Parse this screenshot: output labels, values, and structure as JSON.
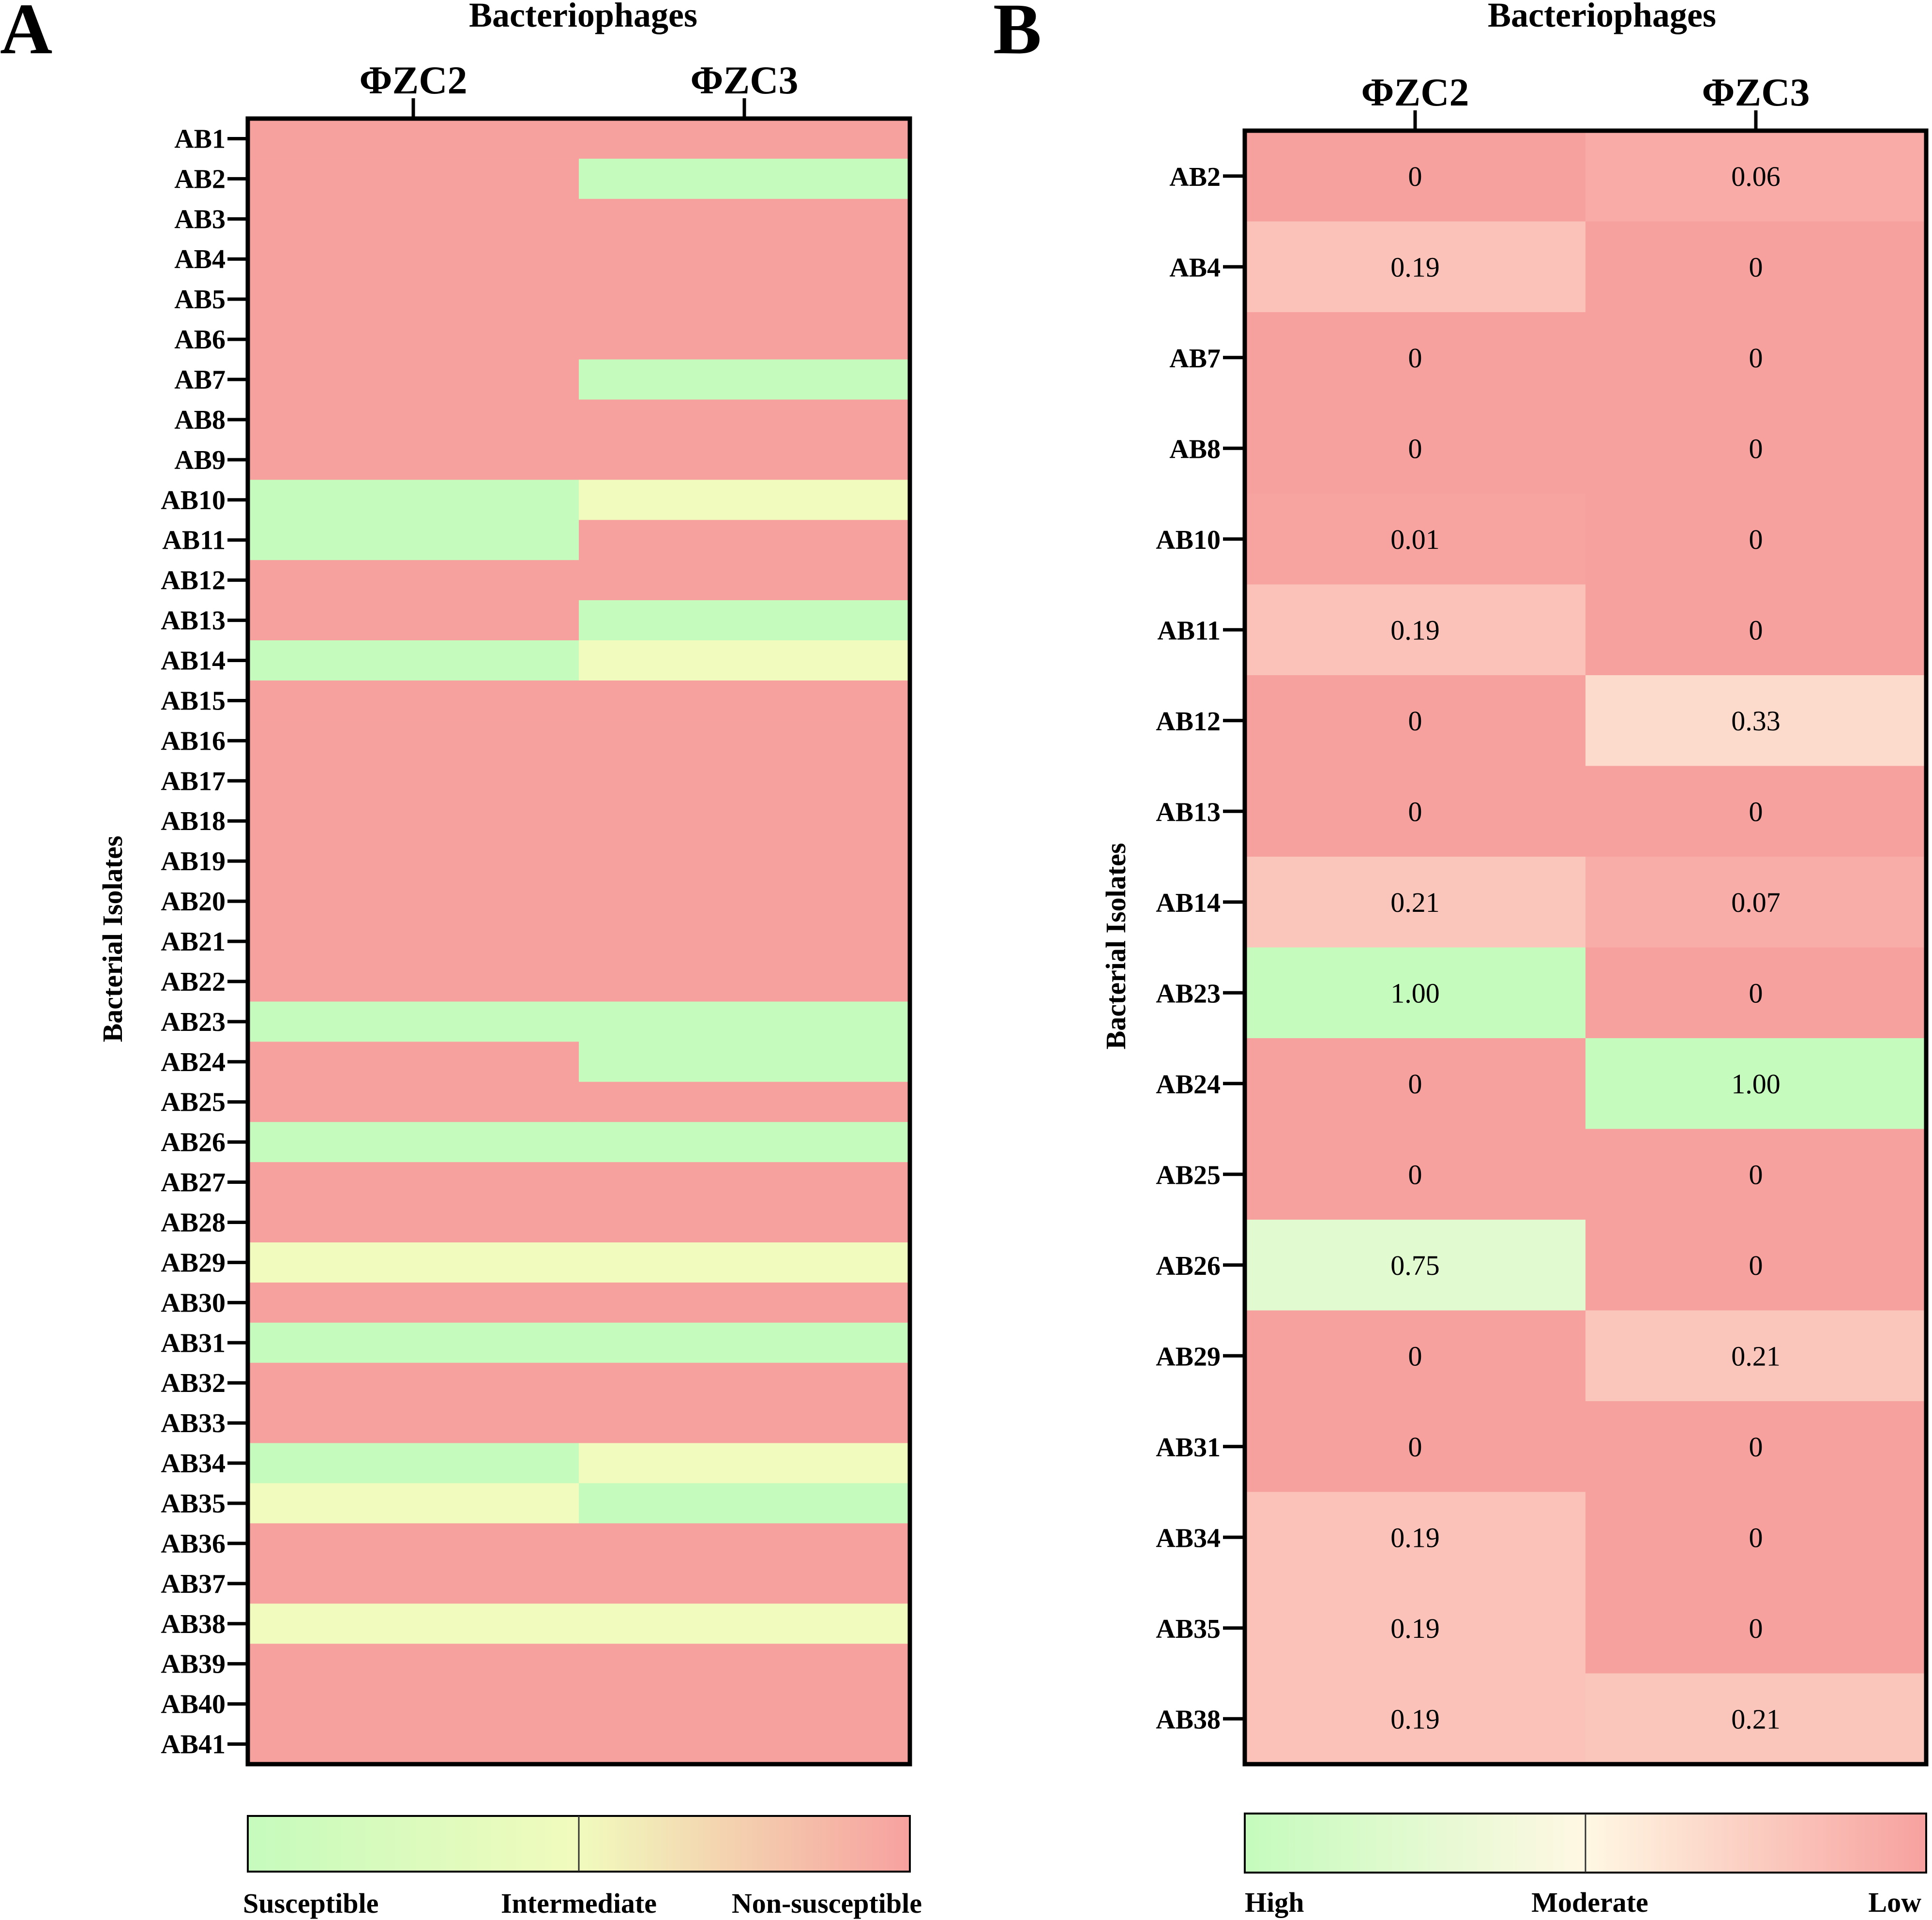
{
  "colors": {
    "non_susceptible": "#f7a19f",
    "susceptible": "#c5fbbd",
    "intermediate": "#f1fbbd",
    "high": "#c5fbbd",
    "moderate": "#fff8e3",
    "low": "#f7a19f"
  },
  "chart_data": [
    {
      "panel": "A",
      "type": "heatmap",
      "title": "Bacteriophages",
      "xlabel": "",
      "ylabel": "Bacterial Isolates",
      "columns": [
        "ΦZC2",
        "ΦZC3"
      ],
      "rows": [
        "AB1",
        "AB2",
        "AB3",
        "AB4",
        "AB5",
        "AB6",
        "AB7",
        "AB8",
        "AB9",
        "AB10",
        "AB11",
        "AB12",
        "AB13",
        "AB14",
        "AB15",
        "AB16",
        "AB17",
        "AB18",
        "AB19",
        "AB20",
        "AB21",
        "AB22",
        "AB23",
        "AB24",
        "AB25",
        "AB26",
        "AB27",
        "AB28",
        "AB29",
        "AB30",
        "AB31",
        "AB32",
        "AB33",
        "AB34",
        "AB35",
        "AB36",
        "AB37",
        "AB38",
        "AB39",
        "AB40",
        "AB41"
      ],
      "categories": [
        "Susceptible",
        "Intermediate",
        "Non-susceptible"
      ],
      "values": [
        [
          "N",
          "N"
        ],
        [
          "N",
          "S"
        ],
        [
          "N",
          "N"
        ],
        [
          "N",
          "N"
        ],
        [
          "N",
          "N"
        ],
        [
          "N",
          "N"
        ],
        [
          "N",
          "S"
        ],
        [
          "N",
          "N"
        ],
        [
          "N",
          "N"
        ],
        [
          "S",
          "I"
        ],
        [
          "S",
          "N"
        ],
        [
          "N",
          "N"
        ],
        [
          "N",
          "S"
        ],
        [
          "S",
          "I"
        ],
        [
          "N",
          "N"
        ],
        [
          "N",
          "N"
        ],
        [
          "N",
          "N"
        ],
        [
          "N",
          "N"
        ],
        [
          "N",
          "N"
        ],
        [
          "N",
          "N"
        ],
        [
          "N",
          "N"
        ],
        [
          "N",
          "N"
        ],
        [
          "S",
          "S"
        ],
        [
          "N",
          "S"
        ],
        [
          "N",
          "N"
        ],
        [
          "S",
          "S"
        ],
        [
          "N",
          "N"
        ],
        [
          "N",
          "N"
        ],
        [
          "I",
          "I"
        ],
        [
          "N",
          "N"
        ],
        [
          "S",
          "S"
        ],
        [
          "N",
          "N"
        ],
        [
          "N",
          "N"
        ],
        [
          "S",
          "I"
        ],
        [
          "I",
          "S"
        ],
        [
          "N",
          "N"
        ],
        [
          "N",
          "N"
        ],
        [
          "I",
          "I"
        ],
        [
          "N",
          "N"
        ],
        [
          "N",
          "N"
        ],
        [
          "N",
          "N"
        ]
      ],
      "legend": [
        "Susceptible",
        "Intermediate",
        "Non-susceptible"
      ]
    },
    {
      "panel": "B",
      "type": "heatmap",
      "title": "Bacteriophages",
      "xlabel": "",
      "ylabel": "Bacterial Isolates",
      "columns": [
        "ΦZC2",
        "ΦZC3"
      ],
      "rows": [
        "AB2",
        "AB4",
        "AB7",
        "AB8",
        "AB10",
        "AB11",
        "AB12",
        "AB13",
        "AB14",
        "AB23",
        "AB24",
        "AB25",
        "AB26",
        "AB29",
        "AB31",
        "AB34",
        "AB35",
        "AB38"
      ],
      "values": [
        [
          "0",
          "0.06"
        ],
        [
          "0.19",
          "0"
        ],
        [
          "0",
          "0"
        ],
        [
          "0",
          "0"
        ],
        [
          "0.01",
          "0"
        ],
        [
          "0.19",
          "0"
        ],
        [
          "0",
          "0.33"
        ],
        [
          "0",
          "0"
        ],
        [
          "0.21",
          "0.07"
        ],
        [
          "1.00",
          "0"
        ],
        [
          "0",
          "1.00"
        ],
        [
          "0",
          "0"
        ],
        [
          "0.75",
          "0"
        ],
        [
          "0",
          "0.21"
        ],
        [
          "0",
          "0"
        ],
        [
          "0.19",
          "0"
        ],
        [
          "0.19",
          "0"
        ],
        [
          "0.19",
          "0.21"
        ]
      ],
      "value_range": [
        0,
        1
      ],
      "legend": [
        "High",
        "Moderate",
        "Low"
      ]
    }
  ]
}
